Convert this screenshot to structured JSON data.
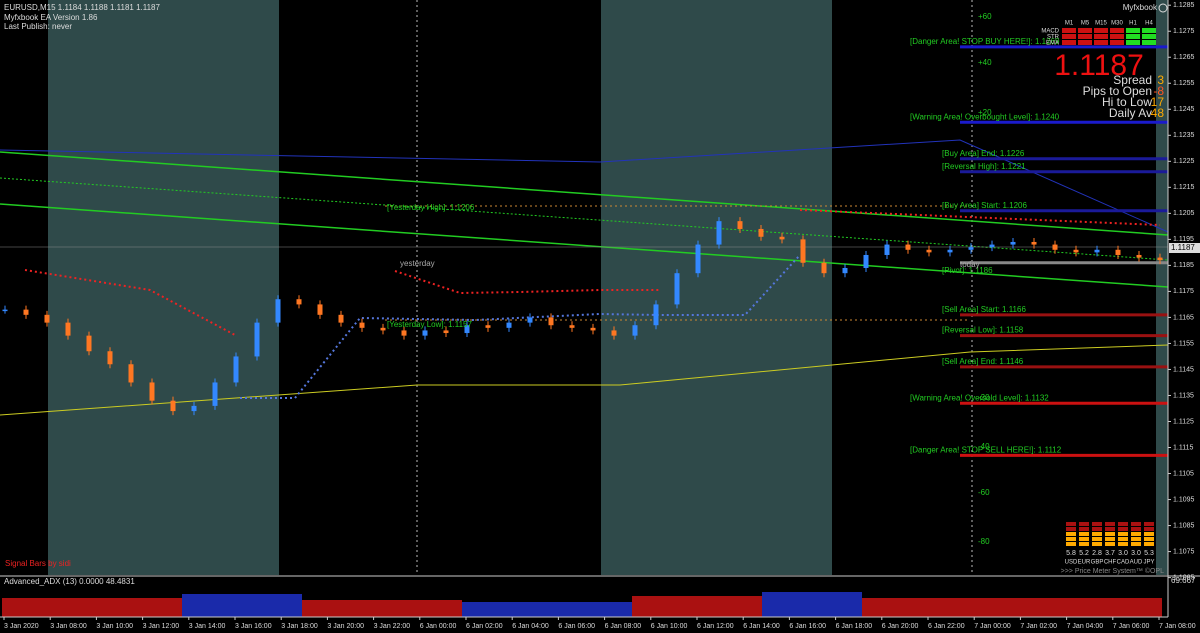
{
  "header": {
    "symbol_line": "EURUSD,M15  1.1184 1.1188 1.1181 1.1187",
    "ea_version": "Myfxbook EA Version 1.86",
    "last_publish": "Last Publish: never",
    "brand": "Myfxbook",
    "signal": "Signal Bars by sidi"
  },
  "price_axis": {
    "ticks": [
      1.1285,
      1.1275,
      1.1265,
      1.1255,
      1.1245,
      1.1235,
      1.1225,
      1.1215,
      1.1205,
      1.1195,
      1.1185,
      1.1175,
      1.1165,
      1.1155,
      1.1145,
      1.1135,
      1.1125,
      1.1115,
      1.1105,
      1.1095,
      1.1085,
      1.1075,
      1.1065
    ],
    "ylim": [
      1.1066,
      1.1287
    ],
    "current": "1.1187"
  },
  "candles": {
    "closes": [
      1.1168,
      1.1166,
      1.1163,
      1.1158,
      1.1152,
      1.1147,
      1.114,
      1.1133,
      1.1129,
      1.1131,
      1.114,
      1.115,
      1.1163,
      1.1172,
      1.117,
      1.1166,
      1.1163,
      1.1161,
      1.116,
      1.1158,
      1.116,
      1.1159,
      1.1162,
      1.1161,
      1.1163,
      1.1165,
      1.1162,
      1.1161,
      1.116,
      1.1158,
      1.1162,
      1.117,
      1.1182,
      1.1193,
      1.1202,
      1.1199,
      1.1196,
      1.1195,
      1.1186,
      1.1182,
      1.1184,
      1.1189,
      1.1193,
      1.1191,
      1.119,
      1.1191,
      1.1192,
      1.1193,
      1.1194,
      1.1193,
      1.1191,
      1.119,
      1.1191,
      1.1189,
      1.1188,
      1.1187
    ]
  },
  "levels": [
    {
      "label": "[Danger Area! STOP BUY HERE!]: 1.1269",
      "price": 1.1269,
      "color": "#1a1acc"
    },
    {
      "label": "[Warning Area! Overbought Level]: 1.1240",
      "price": 1.124,
      "color": "#1a1acc"
    },
    {
      "label": "[Buy Area] End: 1.1226",
      "price": 1.1226,
      "color": "#1a1a99"
    },
    {
      "label": "[Reversal High]: 1.1221",
      "price": 1.1221,
      "color": "#1a1a99"
    },
    {
      "label": "[Buy Area] Start: 1.1206",
      "price": 1.1206,
      "color": "#1a1a99"
    },
    {
      "label": "[Pivot]: 1.1186",
      "price": 1.1186,
      "color": "#888888"
    },
    {
      "label": "[Sell Area] Start: 1.1166",
      "price": 1.1166,
      "color": "#991111"
    },
    {
      "label": "[Reversal Low]: 1.1158",
      "price": 1.1158,
      "color": "#991111"
    },
    {
      "label": "[Sell Area] End: 1.1146",
      "price": 1.1146,
      "color": "#991111"
    },
    {
      "label": "[Warning Area! Oversold Level]: 1.1132",
      "price": 1.1132,
      "color": "#cc1111"
    },
    {
      "label": "[Danger Area! STOP SELL HERE!]: 1.1112",
      "price": 1.1112,
      "color": "#cc1111"
    }
  ],
  "yesterday": {
    "high": "[Yesterday High]: 1.1206",
    "low": "[Yesterday Low]: 1.1157",
    "marker": "yesterday",
    "today": "today"
  },
  "pips": [
    "+60",
    "+40",
    "+20",
    "-20",
    "-40",
    "-60",
    "-80"
  ],
  "stats": {
    "timeframes": [
      "M1",
      "M5",
      "M15",
      "M30",
      "H1",
      "H4"
    ],
    "rows": [
      "MACD",
      "STR",
      "EMA"
    ],
    "price": "1.1187",
    "items": [
      [
        "Spread",
        "3"
      ],
      [
        "Pips to Open",
        "-8"
      ],
      [
        "Hi to Low",
        "17"
      ],
      [
        "Daily Av",
        "48"
      ]
    ]
  },
  "meter": {
    "values": [
      "5.8",
      "5.2",
      "2.8",
      "3.7",
      "3.0",
      "3.0",
      "5.3"
    ],
    "currencies": [
      "USD",
      "EUR",
      "GBP",
      "CHF",
      "CAD",
      "AUD",
      "JPY"
    ],
    "caption": ">>> Price Meter System™ ©OPL"
  },
  "adx": {
    "label": "Advanced_ADX (13) 0.0000 48.4831",
    "top": "69.667"
  },
  "time_axis": [
    "3 Jan 2020",
    "3 Jan 08:00",
    "3 Jan 10:00",
    "3 Jan 12:00",
    "3 Jan 14:00",
    "3 Jan 16:00",
    "3 Jan 18:00",
    "3 Jan 20:00",
    "3 Jan 22:00",
    "6 Jan 00:00",
    "6 Jan 02:00",
    "6 Jan 04:00",
    "6 Jan 06:00",
    "6 Jan 08:00",
    "6 Jan 10:00",
    "6 Jan 12:00",
    "6 Jan 14:00",
    "6 Jan 16:00",
    "6 Jan 18:00",
    "6 Jan 20:00",
    "6 Jan 22:00",
    "7 Jan 00:00",
    "7 Jan 02:00",
    "7 Jan 04:00",
    "7 Jan 06:00",
    "7 Jan 08:00"
  ]
}
